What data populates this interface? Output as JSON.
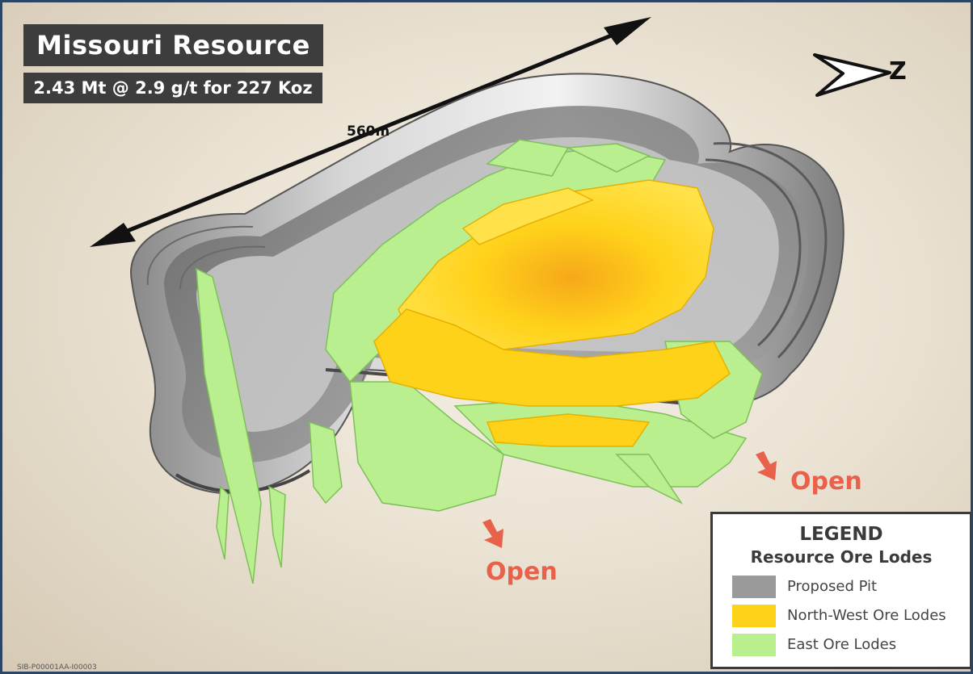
{
  "title": "Missouri Resource",
  "subtitle": "2.43 Mt @ 2.9 g/t for 227 Koz",
  "distance_label": "560m",
  "north_label": "Z",
  "open_labels": [
    "Open",
    "Open"
  ],
  "legend": {
    "title": "LEGEND",
    "subtitle": "Resource Ore Lodes",
    "items": [
      {
        "label": "Proposed Pit",
        "color": "#9a9a9a"
      },
      {
        "label": "North-West Ore Lodes",
        "color": "#ffd21a"
      },
      {
        "label": "East Ore Lodes",
        "color": "#b9ef8e"
      }
    ]
  },
  "image_code": "SIB-P00001AA-I00003",
  "colors": {
    "title_bg": "#3d3d3d",
    "open_text": "#e8614a",
    "frame_border": "#2c4563"
  }
}
